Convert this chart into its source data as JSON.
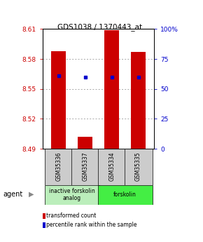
{
  "title": "GDS1038 / 1370443_at",
  "samples": [
    "GSM35336",
    "GSM35337",
    "GSM35334",
    "GSM35335"
  ],
  "bar_bottoms": [
    8.49,
    8.49,
    8.49,
    8.49
  ],
  "bar_tops": [
    8.588,
    8.502,
    8.609,
    8.587
  ],
  "percentile_values": [
    8.563,
    8.562,
    8.562,
    8.562
  ],
  "ylim_left": [
    8.49,
    8.61
  ],
  "ylim_right": [
    0,
    100
  ],
  "yticks_left": [
    8.49,
    8.52,
    8.55,
    8.58,
    8.61
  ],
  "yticks_right": [
    0,
    25,
    50,
    75,
    100
  ],
  "bar_color": "#cc0000",
  "percentile_color": "#0000cc",
  "agent_groups": [
    {
      "label": "inactive forskolin\nanalog",
      "samples": [
        0,
        1
      ],
      "color": "#bbeebb"
    },
    {
      "label": "forskolin",
      "samples": [
        2,
        3
      ],
      "color": "#44ee44"
    }
  ],
  "legend_bar_label": "transformed count",
  "legend_pct_label": "percentile rank within the sample",
  "grid_color": "#888888",
  "left_tick_color": "#cc0000",
  "right_tick_color": "#0000cc",
  "sample_box_color": "#cccccc",
  "agent_label": "agent"
}
